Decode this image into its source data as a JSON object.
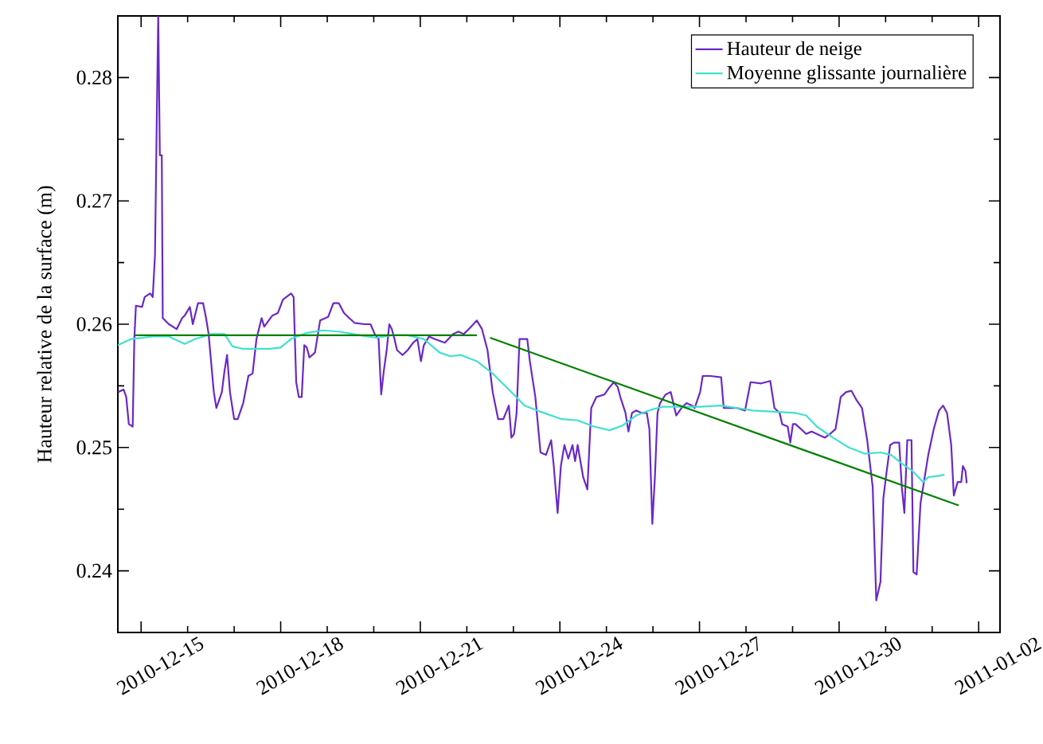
{
  "chart_data": {
    "type": "line",
    "ylabel": "Hauteur relative de la surface (m)",
    "legend": "top right",
    "xlim": [
      "2010-12-14T12:00",
      "2011-01-02T11:00"
    ],
    "ylim": [
      0.235,
      0.285
    ],
    "xticks": [
      "2010-12-15",
      {
        "value": "2010-12-16",
        "label": null
      },
      {
        "value": "2010-12-17",
        "label": null
      },
      "2010-12-18",
      {
        "value": "2010-12-19",
        "label": null
      },
      {
        "value": "2010-12-20",
        "label": null
      },
      "2010-12-21",
      {
        "value": "2010-12-22",
        "label": null
      },
      {
        "value": "2010-12-23",
        "label": null
      },
      "2010-12-24",
      {
        "value": "2010-12-25",
        "label": null
      },
      {
        "value": "2010-12-26",
        "label": null
      },
      "2010-12-27",
      {
        "value": "2010-12-28",
        "label": null
      },
      {
        "value": "2010-12-29",
        "label": null
      },
      "2010-12-30",
      {
        "value": "2010-12-31",
        "label": null
      },
      {
        "value": "2011-01-01",
        "label": null
      },
      "2011-01-02"
    ],
    "yticks": [
      0.24,
      {
        "value": 0.245,
        "label": null
      },
      0.25,
      {
        "value": 0.255,
        "label": null
      },
      0.26,
      {
        "value": 0.265,
        "label": null
      },
      0.27,
      {
        "value": 0.275,
        "label": null
      },
      0.28
    ],
    "series": [
      {
        "name": "Hauteur de neige",
        "color": "#6a28c8",
        "x": [
          "2010-12-14T12:10",
          "2010-12-14T15:00",
          "2010-12-14T16:20",
          "2010-12-14T17:40",
          "2010-12-14T19:40",
          "2010-12-14T20:30",
          "2010-12-14T21:20",
          "2010-12-15T00:30",
          "2010-12-15T01:50",
          "2010-12-15T04:40",
          "2010-12-15T06:00",
          "2010-12-15T07:10",
          "2010-12-15T08:10",
          "2010-12-15T08:50",
          "2010-12-15T09:40",
          "2010-12-15T10:40",
          "2010-12-15T11:10",
          "2010-12-15T14:20",
          "2010-12-15T18:20",
          "2010-12-15T21:10",
          "2010-12-15T22:30",
          "2010-12-16T01:10",
          "2010-12-16T02:40",
          "2010-12-16T05:20",
          "2010-12-16T08:00",
          "2010-12-16T09:30",
          "2010-12-16T10:50",
          "2010-12-16T13:30",
          "2010-12-16T14:50",
          "2010-12-16T17:40",
          "2010-12-16T19:00",
          "2010-12-16T20:20",
          "2010-12-16T21:50",
          "2010-12-17T00:00",
          "2010-12-17T01:50",
          "2010-12-17T04:40",
          "2010-12-17T07:20",
          "2010-12-17T09:30",
          "2010-12-17T11:30",
          "2010-12-17T14:10",
          "2010-12-17T15:30",
          "2010-12-17T19:40",
          "2010-12-17T22:30",
          "2010-12-18T01:10",
          "2010-12-18T05:20",
          "2010-12-18T06:40",
          "2010-12-18T08:00",
          "2010-12-18T09:20",
          "2010-12-18T10:50",
          "2010-12-18T12:10",
          "2010-12-18T13:30",
          "2010-12-18T14:50",
          "2010-12-18T17:40",
          "2010-12-18T20:20",
          "2010-12-19T00:30",
          "2010-12-19T03:10",
          "2010-12-19T06:00",
          "2010-12-19T08:40",
          "2010-12-19T11:20",
          "2010-12-19T14:10",
          "2010-12-19T19:10",
          "2010-12-19T22:20",
          "2010-12-20T00:30",
          "2010-12-20T02:30",
          "2010-12-20T03:50",
          "2010-12-20T05:10",
          "2010-12-20T06:40",
          "2010-12-20T08:00",
          "2010-12-20T09:20",
          "2010-12-20T10:40",
          "2010-12-20T12:00",
          "2010-12-20T14:50",
          "2010-12-20T17:30",
          "2010-12-20T20:20",
          "2010-12-20T22:30",
          "2010-12-21T00:20",
          "2010-12-21T01:50",
          "2010-12-21T04:30",
          "2010-12-21T07:20",
          "2010-12-21T12:40",
          "2010-12-21T16:50",
          "2010-12-21T19:40",
          "2010-12-21T22:20",
          "2010-12-22T01:00",
          "2010-12-22T05:10",
          "2010-12-22T07:50",
          "2010-12-22T10:40",
          "2010-12-22T13:20",
          "2010-12-22T16:10",
          "2010-12-22T18:50",
          "2010-12-22T21:40",
          "2010-12-22T23:00",
          "2010-12-23T00:20",
          "2010-12-23T01:40",
          "2010-12-23T03:10",
          "2010-12-23T07:10",
          "2010-12-23T08:30",
          "2010-12-23T11:20",
          "2010-12-23T14:00",
          "2010-12-23T16:50",
          "2010-12-23T19:30",
          "2010-12-23T20:50",
          "2010-12-23T22:50",
          "2010-12-24T00:30",
          "2010-12-24T02:20",
          "2010-12-24T04:20",
          "2010-12-24T06:30",
          "2010-12-24T07:50",
          "2010-12-24T09:10",
          "2010-12-24T12:00",
          "2010-12-24T14:10",
          "2010-12-24T16:10",
          "2010-12-24T18:50",
          "2010-12-24T23:00",
          "2010-12-25T01:40",
          "2010-12-25T03:50",
          "2010-12-25T05:50",
          "2010-12-25T07:10",
          "2010-12-25T09:50",
          "2010-12-25T11:20",
          "2010-12-25T13:10",
          "2010-12-25T15:20",
          "2010-12-25T18:10",
          "2010-12-25T20:50",
          "2010-12-25T22:10",
          "2010-12-25T23:40",
          "2010-12-26T01:00",
          "2010-12-26T02:20",
          "2010-12-26T03:40",
          "2010-12-26T06:30",
          "2010-12-26T09:10",
          "2010-12-26T10:30",
          "2010-12-26T12:00",
          "2010-12-26T14:40",
          "2010-12-26T17:20",
          "2010-12-26T20:10",
          "2010-12-26T21:30",
          "2010-12-27T00:20",
          "2010-12-27T01:40",
          "2010-12-27T05:40",
          "2010-12-27T11:10",
          "2010-12-27T12:30",
          "2010-12-27T15:20",
          "2010-12-27T19:30",
          "2010-12-27T23:30",
          "2010-12-28T02:20",
          "2010-12-28T07:50",
          "2010-12-28T12:30",
          "2010-12-28T14:40",
          "2010-12-28T17:20",
          "2010-12-28T18:40",
          "2010-12-28T21:30",
          "2010-12-28T22:50",
          "2010-12-29T00:10",
          "2010-12-29T01:30",
          "2010-12-29T04:20",
          "2010-12-29T07:00",
          "2010-12-29T09:50",
          "2010-12-29T12:30",
          "2010-12-29T16:40",
          "2010-12-29T19:20",
          "2010-12-29T22:10",
          "2010-12-29T23:30",
          "2010-12-30T00:50",
          "2010-12-30T03:40",
          "2010-12-30T06:20",
          "2010-12-30T09:10",
          "2010-12-30T11:50",
          "2010-12-30T14:30",
          "2010-12-30T17:20",
          "2010-12-30T19:10",
          "2010-12-30T21:20",
          "2010-12-30T22:50",
          "2010-12-31T00:10",
          "2010-12-31T02:20",
          "2010-12-31T04:20",
          "2010-12-31T07:00",
          "2010-12-31T08:20",
          "2010-12-31T09:40",
          "2010-12-31T11:10",
          "2010-12-31T13:20",
          "2010-12-31T14:20",
          "2010-12-31T16:00",
          "2010-12-31T18:00",
          "2010-12-31T19:20",
          "2010-12-31T22:00",
          "2011-01-01T00:50",
          "2011-01-01T03:30",
          "2011-01-01T05:40",
          "2011-01-01T07:40",
          "2011-01-01T09:50",
          "2011-01-01T11:10",
          "2011-01-01T13:10",
          "2011-01-01T15:00",
          "2011-01-01T15:50",
          "2011-01-01T17:10",
          "2011-01-01T17:50"
        ],
        "values": [
          0.2545,
          0.2547,
          0.2541,
          0.2519,
          0.2517,
          0.2588,
          0.2615,
          0.2614,
          0.2622,
          0.2625,
          0.2622,
          0.2656,
          0.2776,
          0.285,
          0.2737,
          0.2737,
          0.2605,
          0.26,
          0.2596,
          0.2605,
          0.2607,
          0.2614,
          0.26,
          0.2617,
          0.2617,
          0.2605,
          0.2592,
          0.2545,
          0.2532,
          0.2545,
          0.2562,
          0.2575,
          0.2545,
          0.2523,
          0.2523,
          0.2536,
          0.2558,
          0.256,
          0.2588,
          0.2605,
          0.2598,
          0.2607,
          0.2609,
          0.262,
          0.2625,
          0.2622,
          0.2553,
          0.2541,
          0.2541,
          0.2583,
          0.2581,
          0.2573,
          0.2577,
          0.2603,
          0.2606,
          0.2617,
          0.2617,
          0.2609,
          0.2605,
          0.2601,
          0.26,
          0.26,
          0.2592,
          0.2588,
          0.2543,
          0.2562,
          0.2579,
          0.26,
          0.2596,
          0.2588,
          0.2579,
          0.2575,
          0.2579,
          0.2585,
          0.2588,
          0.257,
          0.2583,
          0.259,
          0.2588,
          0.2585,
          0.2592,
          0.2594,
          0.2592,
          0.2596,
          0.2603,
          0.2596,
          0.2579,
          0.2545,
          0.2523,
          0.2523,
          0.2534,
          0.2508,
          0.2511,
          0.2528,
          0.2588,
          0.2588,
          0.257,
          0.2541,
          0.2496,
          0.2494,
          0.2506,
          0.2485,
          0.2447,
          0.2485,
          0.2502,
          0.2491,
          0.2502,
          0.2489,
          0.2502,
          0.2476,
          0.2466,
          0.2532,
          0.2541,
          0.2543,
          0.2549,
          0.2553,
          0.2549,
          0.2541,
          0.2528,
          0.2513,
          0.2528,
          0.253,
          0.2528,
          0.2528,
          0.2515,
          0.2438,
          0.2476,
          0.2528,
          0.2536,
          0.2543,
          0.2545,
          0.2536,
          0.2526,
          0.2532,
          0.2536,
          0.2534,
          0.2532,
          0.2545,
          0.2558,
          0.2558,
          0.2557,
          0.2532,
          0.2532,
          0.2532,
          0.253,
          0.2553,
          0.2552,
          0.2554,
          0.2532,
          0.2528,
          0.2519,
          0.2517,
          0.2504,
          0.2519,
          0.2519,
          0.2515,
          0.2511,
          0.2513,
          0.2511,
          0.2508,
          0.2511,
          0.2515,
          0.2528,
          0.2541,
          0.2545,
          0.2546,
          0.2538,
          0.2532,
          0.2506,
          0.2468,
          0.2376,
          0.2391,
          0.2459,
          0.2476,
          0.2502,
          0.2504,
          0.2504,
          0.2468,
          0.2447,
          0.2506,
          0.2506,
          0.2399,
          0.2397,
          0.2455,
          0.2468,
          0.2494,
          0.2515,
          0.253,
          0.2534,
          0.2528,
          0.2502,
          0.2461,
          0.2472,
          0.2472,
          0.2485,
          0.2481,
          0.2471
        ]
      },
      {
        "name": "Moyenne glissante journalière",
        "color": "#40e0d0",
        "x": [
          "2010-12-14T12:00",
          "2010-12-14T19:00",
          "2010-12-15T06:00",
          "2010-12-15T14:20",
          "2010-12-15T22:30",
          "2010-12-16T04:00",
          "2010-12-16T12:10",
          "2010-12-16T19:00",
          "2010-12-16T23:10",
          "2010-12-17T04:40",
          "2010-12-17T18:20",
          "2010-12-17T23:50",
          "2010-12-18T05:20",
          "2010-12-18T13:30",
          "2010-12-18T21:40",
          "2010-12-19T06:00",
          "2010-12-19T16:50",
          "2010-12-20T01:10",
          "2010-12-20T09:20",
          "2010-12-20T17:30",
          "2010-12-21T01:50",
          "2010-12-21T10:00",
          "2010-12-21T15:30",
          "2010-12-21T21:00",
          "2010-12-22T05:10",
          "2010-12-22T13:20",
          "2010-12-22T21:40",
          "2010-12-23T05:50",
          "2010-12-23T14:00",
          "2010-12-24T01:00",
          "2010-12-24T09:10",
          "2010-12-24T17:30",
          "2010-12-25T01:40",
          "2010-12-25T08:30",
          "2010-12-25T15:20",
          "2010-12-25T23:40",
          "2010-12-26T05:00",
          "2010-12-26T13:20",
          "2010-12-27T00:20",
          "2010-12-27T11:10",
          "2010-12-27T19:30",
          "2010-12-28T03:40",
          "2010-12-28T14:40",
          "2010-12-29T01:30",
          "2010-12-29T07:00",
          "2010-12-29T12:30",
          "2010-12-29T20:50",
          "2010-12-30T05:00",
          "2010-12-30T13:10",
          "2010-12-30T21:20",
          "2010-12-31T02:50",
          "2010-12-31T08:20",
          "2010-12-31T13:50",
          "2010-12-31T19:20",
          "2010-12-31T22:00",
          "2011-01-01T03:30",
          "2011-01-01T06:20"
        ],
        "values": [
          0.2583,
          0.2588,
          0.259,
          0.259,
          0.2584,
          0.2588,
          0.2592,
          0.2592,
          0.2582,
          0.258,
          0.258,
          0.2581,
          0.2588,
          0.2593,
          0.2595,
          0.2594,
          0.2591,
          0.2589,
          0.2591,
          0.2591,
          0.2588,
          0.2577,
          0.2574,
          0.2575,
          0.257,
          0.256,
          0.2547,
          0.2534,
          0.2529,
          0.2523,
          0.2522,
          0.2517,
          0.2514,
          0.2518,
          0.2526,
          0.2531,
          0.2533,
          0.2533,
          0.2533,
          0.2534,
          0.2532,
          0.253,
          0.2529,
          0.2528,
          0.2526,
          0.2517,
          0.2508,
          0.25,
          0.2495,
          0.2496,
          0.2494,
          0.2487,
          0.2481,
          0.2472,
          0.2476,
          0.2477,
          0.2478
        ]
      },
      {
        "color": "#008000",
        "x": [
          "2010-12-14T20:30",
          "2010-12-22T05:10"
        ],
        "values": [
          0.2591,
          0.2591
        ]
      },
      {
        "color": "#008000",
        "x": [
          "2010-12-22T12:00",
          "2011-01-01T13:40"
        ],
        "values": [
          0.2589,
          0.2453
        ]
      }
    ]
  }
}
